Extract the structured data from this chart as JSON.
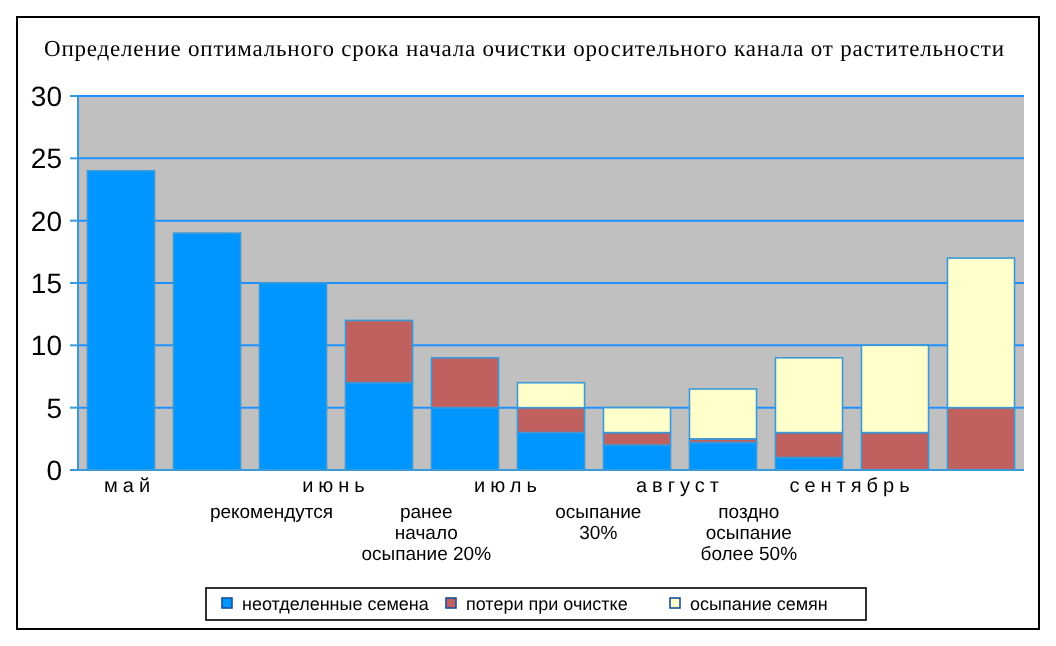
{
  "chart_data": {
    "type": "bar",
    "title": "Определение оптимального срока начала очистки оросительного канала от растительности",
    "categories": [
      null,
      null,
      null,
      null,
      null,
      null,
      null,
      null,
      null,
      null,
      null
    ],
    "stacked": true,
    "series": [
      {
        "name": "неотделенные семена",
        "color": "#0096ff",
        "values": [
          24,
          19,
          15,
          7,
          5,
          3,
          2,
          2.2,
          1,
          0,
          0
        ]
      },
      {
        "name": "потери при очистке",
        "color": "#c0605f",
        "values": [
          0,
          0,
          0,
          5,
          4,
          2,
          1,
          0.3,
          2,
          3,
          5
        ]
      },
      {
        "name": "осыпание семян",
        "color": "#ffffcc",
        "values": [
          0,
          0,
          0,
          0,
          0,
          2,
          2,
          4,
          6,
          7,
          12
        ]
      }
    ],
    "ylim": [
      0,
      30
    ],
    "yticks": [
      0,
      5,
      10,
      15,
      20,
      25,
      30
    ],
    "grid": "y",
    "legend": "bottom",
    "annotations": [
      "май",
      "июнь",
      "июль",
      "август",
      "сентябрь",
      "рекомендутся",
      "ранее начало осыпание 20%",
      "осыпание 30%",
      "поздно осыпание более 50%"
    ]
  }
}
